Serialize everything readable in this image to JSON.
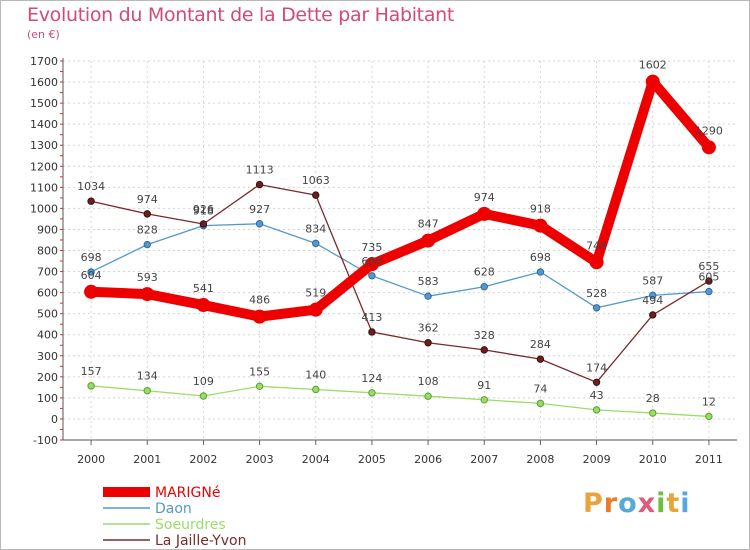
{
  "header": {
    "title": "Evolution du Montant de la Dette par Habitant",
    "subtitle": "(en €)"
  },
  "brand": {
    "text": "Proxiti",
    "letter_colors": [
      "#e8a33a",
      "#e87b2d",
      "#58a8d8",
      "#e05a7b",
      "#6cbf3c",
      "#e8a33a",
      "#58a8d8"
    ]
  },
  "chart_data": {
    "type": "line",
    "title": "Evolution du Montant de la Dette par Habitant",
    "subtitle": "(en €)",
    "x": [
      2000,
      2001,
      2002,
      2003,
      2004,
      2005,
      2006,
      2007,
      2008,
      2009,
      2010,
      2011
    ],
    "ylim": [
      -100,
      1700
    ],
    "yticks": [
      -100,
      0,
      100,
      200,
      300,
      400,
      500,
      600,
      700,
      800,
      900,
      1000,
      1100,
      1200,
      1300,
      1400,
      1500,
      1600,
      1700
    ],
    "grid": true,
    "legend_position": "bottom-left",
    "series": [
      {
        "name": "MARIGNé",
        "color": "#ee0000",
        "values": [
          604,
          593,
          541,
          486,
          519,
          735,
          847,
          974,
          918,
          744,
          1602,
          1290
        ]
      },
      {
        "name": "Daon",
        "color": "#5599cc",
        "values": [
          698,
          828,
          918,
          927,
          834,
          680,
          583,
          628,
          698,
          528,
          587,
          605
        ]
      },
      {
        "name": "Soeurdres",
        "color": "#99dd66",
        "values": [
          157,
          134,
          109,
          155,
          140,
          124,
          108,
          91,
          74,
          43,
          28,
          12
        ]
      },
      {
        "name": "La Jaille-Yvon",
        "color": "#7a2a2a",
        "values": [
          1034,
          974,
          926,
          1113,
          1063,
          413,
          362,
          328,
          284,
          174,
          494,
          655
        ]
      }
    ]
  }
}
